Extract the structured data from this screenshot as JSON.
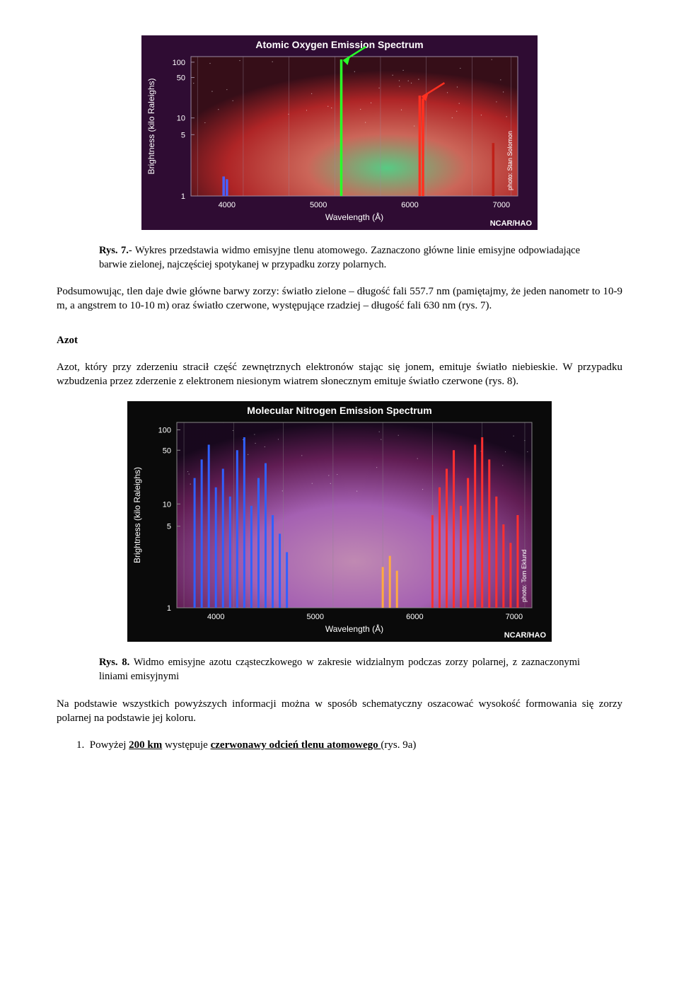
{
  "chart1": {
    "title": "Atomic Oxygen Emission Spectrum",
    "xlabel": "Wavelength (Å)",
    "ylabel": "Brightness (kilo Raleighs)",
    "credit": "NCAR/HAO",
    "photo_credit": "photo: Stan Solomon",
    "bg_outer": "#2f0c33",
    "bg_inner": "#120a18",
    "grid_color": "#9b8aa0",
    "text_color": "#ffffff",
    "xticks": [
      "4000",
      "5000",
      "6000",
      "7000"
    ],
    "xtick_pos": [
      0.11,
      0.39,
      0.67,
      0.95
    ],
    "yticks": [
      "1",
      "5",
      "10",
      "50",
      "100"
    ],
    "ytick_pos": [
      1.0,
      0.56,
      0.44,
      0.15,
      0.04
    ],
    "gridlines_x": [
      0.02,
      0.16,
      0.3,
      0.44,
      0.58,
      0.72,
      0.86,
      0.98
    ],
    "lines": [
      {
        "x": 0.46,
        "top": 0.02,
        "color": "#29ff29",
        "arrow": true,
        "arrow_color": "#29ff29"
      },
      {
        "x": 0.7,
        "top": 0.28,
        "color": "#ff3020",
        "arrow": true,
        "arrow_color": "#ff3020"
      },
      {
        "x": 0.71,
        "top": 0.3,
        "color": "#ff3020"
      },
      {
        "x": 0.1,
        "top": 0.86,
        "color": "#4a60ff"
      },
      {
        "x": 0.11,
        "top": 0.88,
        "color": "#4a60ff"
      },
      {
        "x": 0.925,
        "top": 0.62,
        "color": "#c02018"
      }
    ],
    "aurora_colors": [
      "#5fe090",
      "#e07060",
      "#c02828",
      "#3a0e18"
    ]
  },
  "caption1": {
    "prefix": "Rys. 7.",
    "text": "- Wykres przedstawia widmo emisyjne tlenu atomowego. Zaznaczono główne linie emisyjne odpowiadające barwie zielonej, najczęściej spotykanej w przypadku zorzy polarnych."
  },
  "para1": "Podsumowując, tlen daje dwie główne barwy zorzy: światło zielone – długość fali 557.7 nm (pamiętajmy, że jeden nanometr to 10-9 m, a angstrem to 10-10 m) oraz światło czerwone, występujące rzadziej – długość fali 630 nm (rys. 7).",
  "section_azot": "Azot",
  "para2": "Azot, który przy zderzeniu stracił część zewnętrznych elektronów stając się jonem, emituje światło niebieskie. W przypadku wzbudzenia przez zderzenie z elektronem niesionym wiatrem słonecznym emituje światło czerwone (rys. 8).",
  "chart2": {
    "title": "Molecular Nitrogen Emission Spectrum",
    "xlabel": "Wavelength (Å)",
    "ylabel": "Brightness (kilo Raleighs)",
    "credit": "NCAR/HAO",
    "photo_credit": "photo: Tom Eklund",
    "bg_outer": "#0a0a0a",
    "bg_inner": "#0a0a0a",
    "grid_color": "#888888",
    "text_color": "#ffffff",
    "xticks": [
      "4000",
      "5000",
      "6000",
      "7000"
    ],
    "xtick_pos": [
      0.11,
      0.39,
      0.67,
      0.95
    ],
    "yticks": [
      "1",
      "5",
      "10",
      "50",
      "100"
    ],
    "ytick_pos": [
      1.0,
      0.56,
      0.44,
      0.15,
      0.04
    ],
    "gridlines_x": [
      0.02,
      0.16,
      0.3,
      0.44,
      0.58,
      0.72,
      0.86,
      0.98
    ],
    "line_groups": [
      {
        "color": "#3060ff",
        "lines": [
          {
            "x": 0.05,
            "top": 0.3
          },
          {
            "x": 0.07,
            "top": 0.2
          },
          {
            "x": 0.09,
            "top": 0.12
          },
          {
            "x": 0.11,
            "top": 0.35
          },
          {
            "x": 0.13,
            "top": 0.25
          },
          {
            "x": 0.15,
            "top": 0.4
          },
          {
            "x": 0.17,
            "top": 0.15
          },
          {
            "x": 0.19,
            "top": 0.08
          },
          {
            "x": 0.21,
            "top": 0.45
          },
          {
            "x": 0.23,
            "top": 0.3
          },
          {
            "x": 0.25,
            "top": 0.22
          },
          {
            "x": 0.27,
            "top": 0.5
          },
          {
            "x": 0.29,
            "top": 0.6
          },
          {
            "x": 0.31,
            "top": 0.7
          }
        ]
      },
      {
        "color": "#ffaa40",
        "lines": [
          {
            "x": 0.58,
            "top": 0.78
          },
          {
            "x": 0.6,
            "top": 0.72
          },
          {
            "x": 0.62,
            "top": 0.8
          }
        ]
      },
      {
        "color": "#ff3030",
        "lines": [
          {
            "x": 0.72,
            "top": 0.5
          },
          {
            "x": 0.74,
            "top": 0.35
          },
          {
            "x": 0.76,
            "top": 0.25
          },
          {
            "x": 0.78,
            "top": 0.15
          },
          {
            "x": 0.8,
            "top": 0.45
          },
          {
            "x": 0.82,
            "top": 0.3
          },
          {
            "x": 0.84,
            "top": 0.12
          },
          {
            "x": 0.86,
            "top": 0.08
          },
          {
            "x": 0.88,
            "top": 0.2
          },
          {
            "x": 0.9,
            "top": 0.4
          },
          {
            "x": 0.92,
            "top": 0.55
          },
          {
            "x": 0.94,
            "top": 0.65
          },
          {
            "x": 0.96,
            "top": 0.5
          }
        ]
      }
    ],
    "aurora_colors": [
      "#c070d0",
      "#e0a0d0",
      "#702060",
      "#1a0820"
    ]
  },
  "caption2": {
    "prefix": "Rys. 8.",
    "text": " Widmo emisyjne azotu cząsteczkowego w zakresie widzialnym podczas zorzy polarnej, z zaznaczonymi liniami emisyjnymi"
  },
  "para3": "Na podstawie wszystkich powyższych informacji można w sposób schematyczny oszacować wysokość formowania się zorzy polarnej na podstawie jej koloru.",
  "list1": {
    "num": "1.",
    "pre": "Powyżej ",
    "bold_u": "200 km",
    "mid": " występuje ",
    "bold_u2": "czerwonawy odcień tlenu atomowego ",
    "post": "(rys. 9a)"
  },
  "svg": {
    "chart1_w": 560,
    "chart1_h": 275,
    "chart2_w": 600,
    "chart2_h": 340
  }
}
